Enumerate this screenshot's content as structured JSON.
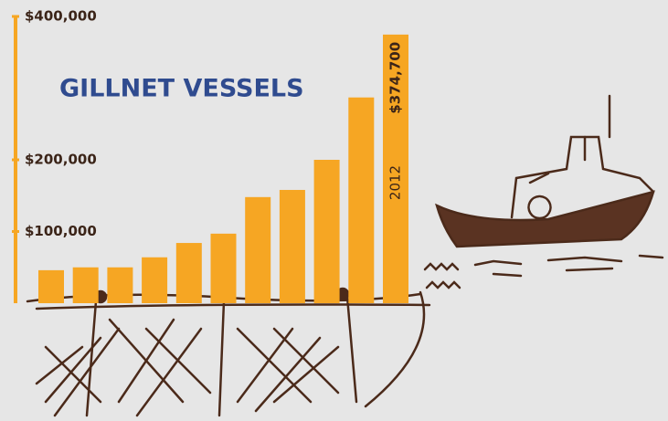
{
  "chart_data": {
    "type": "bar",
    "title": "GILLNET VESSELS",
    "categories": [
      null,
      null,
      null,
      null,
      null,
      null,
      null,
      null,
      null,
      null,
      "2012"
    ],
    "values": [
      46000,
      50000,
      50000,
      64000,
      84000,
      97000,
      148000,
      158000,
      200000,
      287000,
      374700
    ],
    "value_labels": [
      null,
      null,
      null,
      null,
      null,
      null,
      null,
      null,
      null,
      null,
      "$374,700"
    ],
    "color": "#f6a623",
    "ylim": [
      0,
      400000
    ],
    "yticks": [
      {
        "value": 100000,
        "label": "$100,000"
      },
      {
        "value": 200000,
        "label": "$200,000"
      },
      {
        "value": 400000,
        "label": "$400,000"
      }
    ]
  }
}
